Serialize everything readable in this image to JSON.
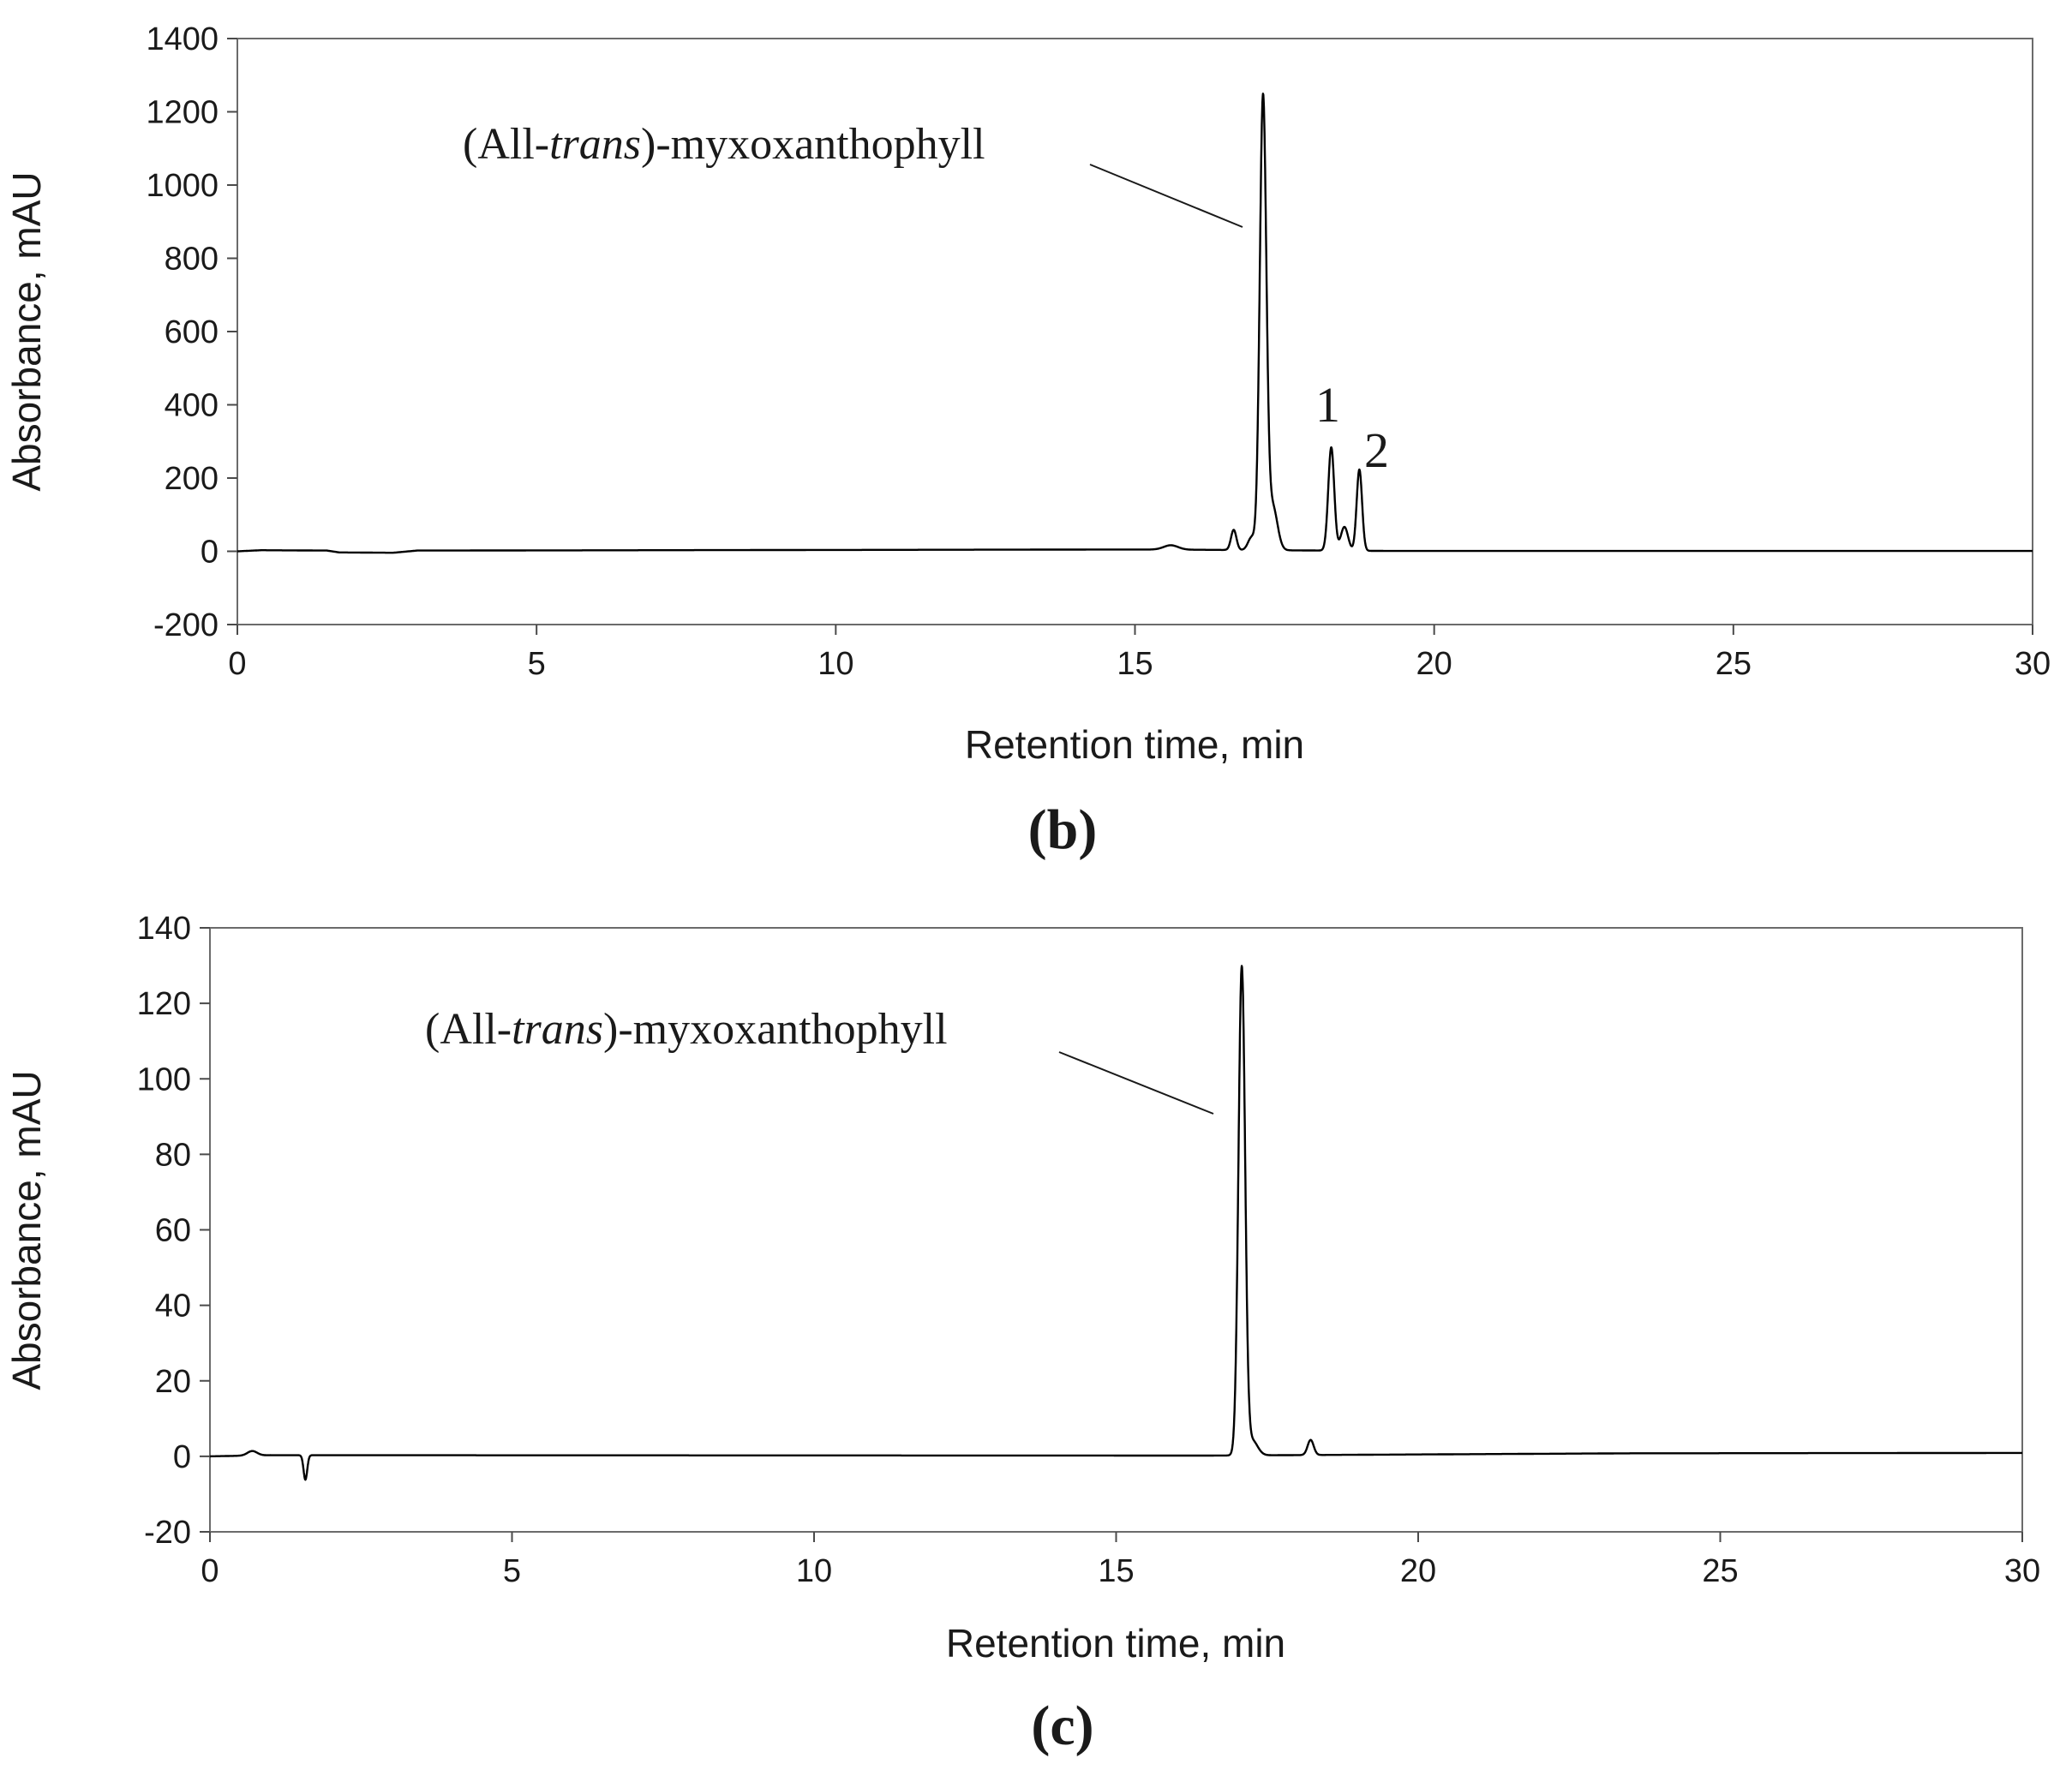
{
  "chart_data": [
    {
      "type": "line",
      "panel_label": "(b)",
      "xlabel": "Retention time, min",
      "ylabel": "Absorbance, mAU",
      "xlim": [
        0,
        30
      ],
      "ylim": [
        -200,
        1400
      ],
      "x_ticks": [
        0,
        5,
        10,
        15,
        20,
        25,
        30
      ],
      "y_ticks": [
        -200,
        0,
        200,
        400,
        600,
        800,
        1000,
        1200,
        1400
      ],
      "grid": false,
      "color": "#000000",
      "annotations": [
        {
          "text_prefix": "(All-",
          "text_italic": "trans",
          "text_suffix": ")-myxoxanthophyll",
          "x": 17.1,
          "y": 1230
        },
        {
          "text": "1",
          "x": 18.3,
          "y": 285
        },
        {
          "text": "2",
          "x": 18.75,
          "y": 225
        }
      ],
      "peaks": [
        {
          "x": 15.6,
          "y": 12,
          "w": 0.12
        },
        {
          "x": 16.65,
          "y": 55,
          "w": 0.045
        },
        {
          "x": 16.95,
          "y": 35,
          "w": 0.06
        },
        {
          "x": 17.14,
          "y": 1230,
          "w": 0.055
        },
        {
          "x": 17.3,
          "y": 120,
          "w": 0.08
        },
        {
          "x": 18.28,
          "y": 282,
          "w": 0.05
        },
        {
          "x": 18.5,
          "y": 65,
          "w": 0.06
        },
        {
          "x": 18.75,
          "y": 222,
          "w": 0.045
        }
      ],
      "baseline": [
        [
          0,
          0
        ],
        [
          0.4,
          3
        ],
        [
          1.5,
          2
        ],
        [
          1.7,
          -3
        ],
        [
          2.6,
          -4
        ],
        [
          3.0,
          2
        ],
        [
          15,
          5
        ],
        [
          16.3,
          4
        ],
        [
          19.2,
          1
        ],
        [
          30,
          1
        ]
      ]
    },
    {
      "type": "line",
      "panel_label": "(c)",
      "xlabel": "Retention time, min",
      "ylabel": "Absorbance, mAU",
      "xlim": [
        0,
        30
      ],
      "ylim": [
        -20,
        140
      ],
      "x_ticks": [
        0,
        5,
        10,
        15,
        20,
        25,
        30
      ],
      "y_ticks": [
        -20,
        0,
        20,
        40,
        60,
        80,
        100,
        120,
        140
      ],
      "grid": false,
      "color": "#000000",
      "annotations": [
        {
          "text_prefix": "(All-",
          "text_italic": "trans",
          "text_suffix": ")-myxoxanthophyll",
          "x": 17.1,
          "y": 130
        }
      ],
      "peaks": [
        {
          "x": 0.7,
          "y": 1.2,
          "w": 0.08
        },
        {
          "x": 1.58,
          "y": -6.5,
          "w": 0.03
        },
        {
          "x": 17.08,
          "y": 129,
          "w": 0.055
        },
        {
          "x": 17.25,
          "y": 4,
          "w": 0.09
        },
        {
          "x": 18.22,
          "y": 4,
          "w": 0.05
        }
      ],
      "baseline": [
        [
          0,
          0
        ],
        [
          1,
          0.3
        ],
        [
          16.5,
          0.2
        ],
        [
          23.5,
          0.8
        ],
        [
          30,
          0.9
        ]
      ]
    }
  ]
}
